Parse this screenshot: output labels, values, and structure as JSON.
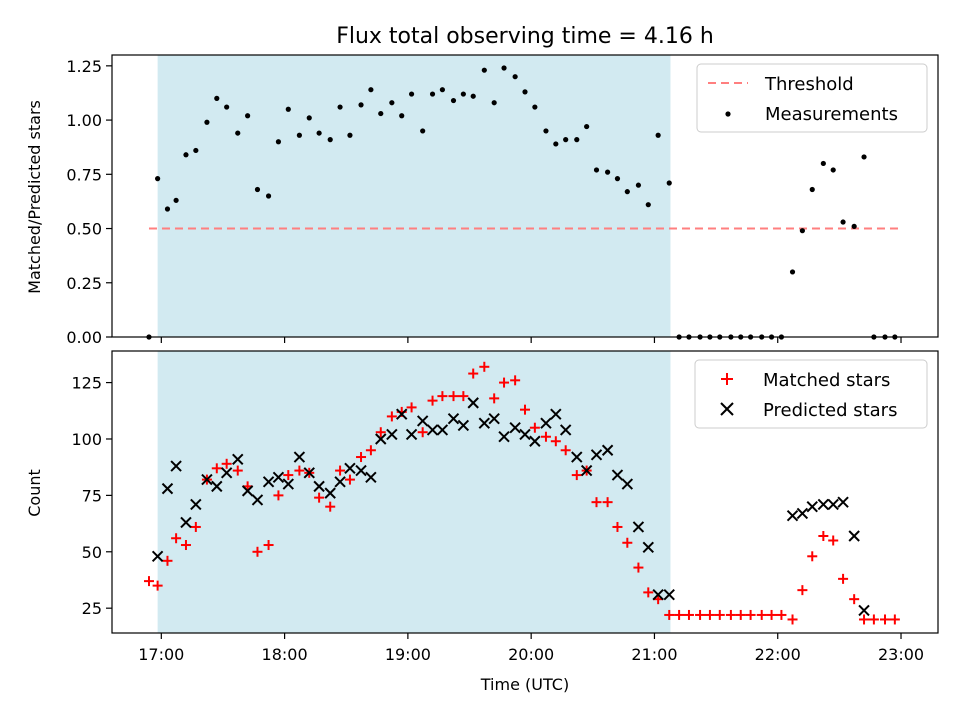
{
  "chart_data": [
    {
      "type": "scatter",
      "title": "Flux total observing time = 4.16 h",
      "ylabel": "Matched/Predicted stars",
      "xlabel": "",
      "x_unit": "hours (UTC)",
      "xlim": [
        16.6,
        23.3
      ],
      "ylim": [
        0,
        1.3
      ],
      "x_ticks": [
        17,
        18,
        19,
        20,
        21,
        22,
        23
      ],
      "y_ticks": [
        0.0,
        0.25,
        0.5,
        0.75,
        1.0,
        1.25
      ],
      "y_tick_labels": [
        "0.00",
        "0.25",
        "0.50",
        "0.75",
        "1.00",
        "1.25"
      ],
      "shaded_region": {
        "x_start": 16.97,
        "x_end": 21.13,
        "color": "#add8e6"
      },
      "legend_position": "top-right",
      "threshold": {
        "name": "Threshold",
        "y": 0.5,
        "x_start": 16.9,
        "x_end": 23.0,
        "color": "#ff7f7f"
      },
      "series": [
        {
          "name": "Measurements",
          "marker": "dot",
          "color": "#000000",
          "points": [
            [
              16.9,
              0.0
            ],
            [
              16.97,
              0.73
            ],
            [
              17.05,
              0.59
            ],
            [
              17.12,
              0.63
            ],
            [
              17.2,
              0.84
            ],
            [
              17.28,
              0.86
            ],
            [
              17.37,
              0.99
            ],
            [
              17.45,
              1.1
            ],
            [
              17.53,
              1.06
            ],
            [
              17.62,
              0.94
            ],
            [
              17.7,
              1.02
            ],
            [
              17.78,
              0.68
            ],
            [
              17.87,
              0.65
            ],
            [
              17.95,
              0.9
            ],
            [
              18.03,
              1.05
            ],
            [
              18.12,
              0.93
            ],
            [
              18.2,
              1.01
            ],
            [
              18.28,
              0.94
            ],
            [
              18.37,
              0.91
            ],
            [
              18.45,
              1.06
            ],
            [
              18.53,
              0.93
            ],
            [
              18.62,
              1.07
            ],
            [
              18.7,
              1.14
            ],
            [
              18.78,
              1.03
            ],
            [
              18.87,
              1.08
            ],
            [
              18.95,
              1.02
            ],
            [
              19.03,
              1.12
            ],
            [
              19.12,
              0.95
            ],
            [
              19.2,
              1.12
            ],
            [
              19.28,
              1.14
            ],
            [
              19.37,
              1.09
            ],
            [
              19.45,
              1.12
            ],
            [
              19.53,
              1.11
            ],
            [
              19.62,
              1.23
            ],
            [
              19.7,
              1.08
            ],
            [
              19.78,
              1.24
            ],
            [
              19.87,
              1.2
            ],
            [
              19.95,
              1.13
            ],
            [
              20.03,
              1.06
            ],
            [
              20.12,
              0.95
            ],
            [
              20.2,
              0.89
            ],
            [
              20.28,
              0.91
            ],
            [
              20.37,
              0.91
            ],
            [
              20.45,
              0.97
            ],
            [
              20.53,
              0.77
            ],
            [
              20.62,
              0.76
            ],
            [
              20.7,
              0.73
            ],
            [
              20.78,
              0.67
            ],
            [
              20.87,
              0.7
            ],
            [
              20.95,
              0.61
            ],
            [
              21.03,
              0.93
            ],
            [
              21.12,
              0.71
            ],
            [
              21.2,
              0.0
            ],
            [
              21.28,
              0.0
            ],
            [
              21.37,
              0.0
            ],
            [
              21.45,
              0.0
            ],
            [
              21.53,
              0.0
            ],
            [
              21.62,
              0.0
            ],
            [
              21.7,
              0.0
            ],
            [
              21.78,
              0.0
            ],
            [
              21.87,
              0.0
            ],
            [
              21.95,
              0.0
            ],
            [
              22.03,
              0.0
            ],
            [
              22.12,
              0.3
            ],
            [
              22.2,
              0.49
            ],
            [
              22.28,
              0.68
            ],
            [
              22.37,
              0.8
            ],
            [
              22.45,
              0.77
            ],
            [
              22.53,
              0.53
            ],
            [
              22.62,
              0.51
            ],
            [
              22.7,
              0.83
            ],
            [
              22.78,
              0.0
            ],
            [
              22.87,
              0.0
            ],
            [
              22.95,
              0.0
            ]
          ]
        }
      ]
    },
    {
      "type": "scatter",
      "title": "",
      "ylabel": "Count",
      "xlabel": "Time (UTC)",
      "x_unit": "hours (UTC)",
      "xlim": [
        16.6,
        23.3
      ],
      "ylim": [
        14,
        139
      ],
      "x_ticks": [
        17,
        18,
        19,
        20,
        21,
        22,
        23
      ],
      "x_tick_labels": [
        "17:00",
        "18:00",
        "19:00",
        "20:00",
        "21:00",
        "22:00",
        "23:00"
      ],
      "y_ticks": [
        25,
        50,
        75,
        100,
        125
      ],
      "shaded_region": {
        "x_start": 16.97,
        "x_end": 21.13,
        "color": "#add8e6"
      },
      "legend_position": "top-right",
      "series": [
        {
          "name": "Matched stars",
          "marker": "plus",
          "color": "#ff0000",
          "points": [
            [
              16.9,
              37
            ],
            [
              16.97,
              35
            ],
            [
              17.05,
              46
            ],
            [
              17.12,
              56
            ],
            [
              17.2,
              53
            ],
            [
              17.28,
              61
            ],
            [
              17.37,
              82
            ],
            [
              17.45,
              87
            ],
            [
              17.53,
              89
            ],
            [
              17.62,
              86
            ],
            [
              17.7,
              79
            ],
            [
              17.78,
              50
            ],
            [
              17.87,
              53
            ],
            [
              17.95,
              75
            ],
            [
              18.03,
              84
            ],
            [
              18.12,
              86
            ],
            [
              18.2,
              85
            ],
            [
              18.28,
              74
            ],
            [
              18.37,
              70
            ],
            [
              18.45,
              86
            ],
            [
              18.53,
              82
            ],
            [
              18.62,
              92
            ],
            [
              18.7,
              95
            ],
            [
              18.78,
              103
            ],
            [
              18.87,
              110
            ],
            [
              18.95,
              112
            ],
            [
              19.03,
              114
            ],
            [
              19.12,
              103
            ],
            [
              19.2,
              117
            ],
            [
              19.28,
              119
            ],
            [
              19.37,
              119
            ],
            [
              19.45,
              119
            ],
            [
              19.53,
              129
            ],
            [
              19.62,
              132
            ],
            [
              19.7,
              118
            ],
            [
              19.78,
              125
            ],
            [
              19.87,
              126
            ],
            [
              19.95,
              113
            ],
            [
              20.03,
              105
            ],
            [
              20.12,
              101
            ],
            [
              20.2,
              99
            ],
            [
              20.28,
              95
            ],
            [
              20.37,
              84
            ],
            [
              20.45,
              86
            ],
            [
              20.53,
              72
            ],
            [
              20.62,
              72
            ],
            [
              20.7,
              61
            ],
            [
              20.78,
              54
            ],
            [
              20.87,
              43
            ],
            [
              20.95,
              32
            ],
            [
              21.03,
              29
            ],
            [
              21.12,
              22
            ],
            [
              21.2,
              22
            ],
            [
              21.28,
              22
            ],
            [
              21.37,
              22
            ],
            [
              21.45,
              22
            ],
            [
              21.53,
              22
            ],
            [
              21.62,
              22
            ],
            [
              21.7,
              22
            ],
            [
              21.78,
              22
            ],
            [
              21.87,
              22
            ],
            [
              21.95,
              22
            ],
            [
              22.03,
              22
            ],
            [
              22.12,
              20
            ],
            [
              22.2,
              33
            ],
            [
              22.28,
              48
            ],
            [
              22.37,
              57
            ],
            [
              22.45,
              55
            ],
            [
              22.53,
              38
            ],
            [
              22.62,
              29
            ],
            [
              22.7,
              20
            ],
            [
              22.78,
              20
            ],
            [
              22.87,
              20
            ],
            [
              22.95,
              20
            ]
          ]
        },
        {
          "name": "Predicted stars",
          "marker": "x",
          "color": "#000000",
          "points": [
            [
              16.97,
              48
            ],
            [
              17.05,
              78
            ],
            [
              17.12,
              88
            ],
            [
              17.2,
              63
            ],
            [
              17.28,
              71
            ],
            [
              17.37,
              82
            ],
            [
              17.45,
              79
            ],
            [
              17.53,
              85
            ],
            [
              17.62,
              91
            ],
            [
              17.7,
              77
            ],
            [
              17.78,
              73
            ],
            [
              17.87,
              81
            ],
            [
              17.95,
              83
            ],
            [
              18.03,
              80
            ],
            [
              18.12,
              92
            ],
            [
              18.2,
              85
            ],
            [
              18.28,
              79
            ],
            [
              18.37,
              76
            ],
            [
              18.45,
              81
            ],
            [
              18.53,
              87
            ],
            [
              18.62,
              86
            ],
            [
              18.7,
              83
            ],
            [
              18.78,
              100
            ],
            [
              18.87,
              102
            ],
            [
              18.95,
              111
            ],
            [
              19.03,
              102
            ],
            [
              19.12,
              108
            ],
            [
              19.2,
              104
            ],
            [
              19.28,
              104
            ],
            [
              19.37,
              109
            ],
            [
              19.45,
              106
            ],
            [
              19.53,
              116
            ],
            [
              19.62,
              107
            ],
            [
              19.7,
              109
            ],
            [
              19.78,
              101
            ],
            [
              19.87,
              105
            ],
            [
              19.95,
              102
            ],
            [
              20.03,
              99
            ],
            [
              20.12,
              107
            ],
            [
              20.2,
              111
            ],
            [
              20.28,
              104
            ],
            [
              20.37,
              92
            ],
            [
              20.45,
              86
            ],
            [
              20.53,
              93
            ],
            [
              20.62,
              95
            ],
            [
              20.7,
              84
            ],
            [
              20.78,
              80
            ],
            [
              20.87,
              61
            ],
            [
              20.95,
              52
            ],
            [
              21.03,
              31
            ],
            [
              21.12,
              31
            ],
            [
              22.12,
              66
            ],
            [
              22.2,
              67
            ],
            [
              22.28,
              70
            ],
            [
              22.37,
              71
            ],
            [
              22.45,
              71
            ],
            [
              22.53,
              72
            ],
            [
              22.62,
              57
            ],
            [
              22.7,
              24
            ]
          ]
        }
      ]
    }
  ]
}
